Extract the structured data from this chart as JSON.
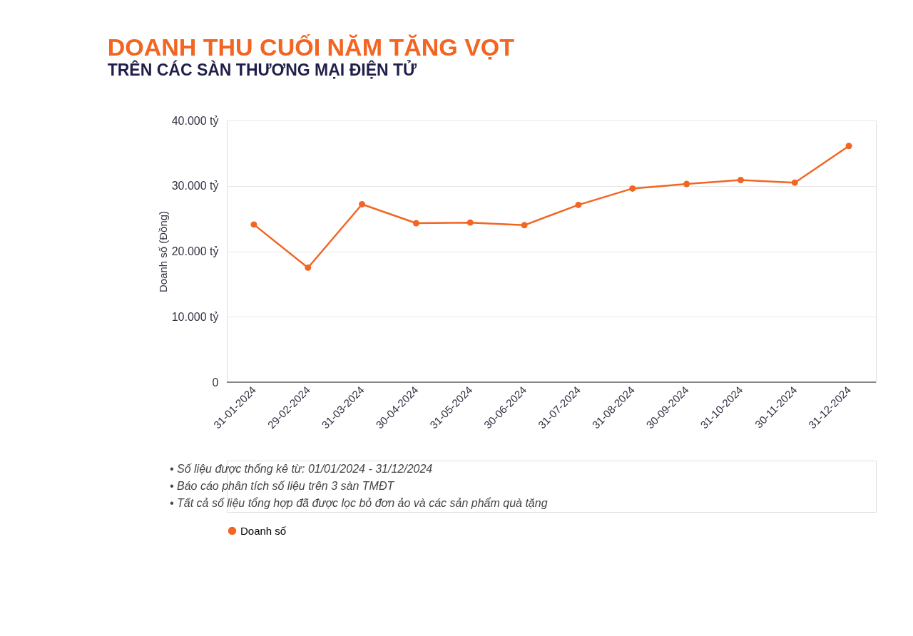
{
  "chart_data": {
    "type": "line",
    "title": "DOANH THU CUỐI NĂM TĂNG VỌT",
    "subtitle": "TRÊN CÁC SÀN THƯƠNG MẠI ĐIỆN TỬ",
    "ylabel": "Doanh số (Đồng)",
    "categories": [
      "31-01-2024",
      "29-02-2024",
      "31-03-2024",
      "30-04-2024",
      "31-05-2024",
      "30-06-2024",
      "31-07-2024",
      "31-08-2024",
      "30-09-2024",
      "31-10-2024",
      "30-11-2024",
      "31-12-2024"
    ],
    "series": [
      {
        "name": "Doanh số",
        "color": "#f26522",
        "values": [
          24100,
          17500,
          27200,
          24300,
          24400,
          24000,
          27100,
          29600,
          30300,
          30900,
          30500,
          36100
        ]
      }
    ],
    "ylim": [
      0,
      40000
    ],
    "yticks": [
      {
        "value": 0,
        "label": "0"
      },
      {
        "value": 10000,
        "label": "10.000 tỷ"
      },
      {
        "value": 20000,
        "label": "20.000 tỷ"
      },
      {
        "value": 30000,
        "label": "30.000 tỷ"
      },
      {
        "value": 40000,
        "label": "40.000 tỷ"
      }
    ],
    "grid": "y",
    "legend": "bottom",
    "marker": "circle",
    "line_style": "solid",
    "annotations": [
      "• Số liệu được thống kê từ: 01/01/2024 - 31/12/2024",
      "• Báo cáo phân tích số liệu trên 3 sàn TMĐT",
      "• Tất cả số liệu tổng hợp đã được lọc bỏ đơn ảo và các sản phẩm quà tặng"
    ]
  }
}
